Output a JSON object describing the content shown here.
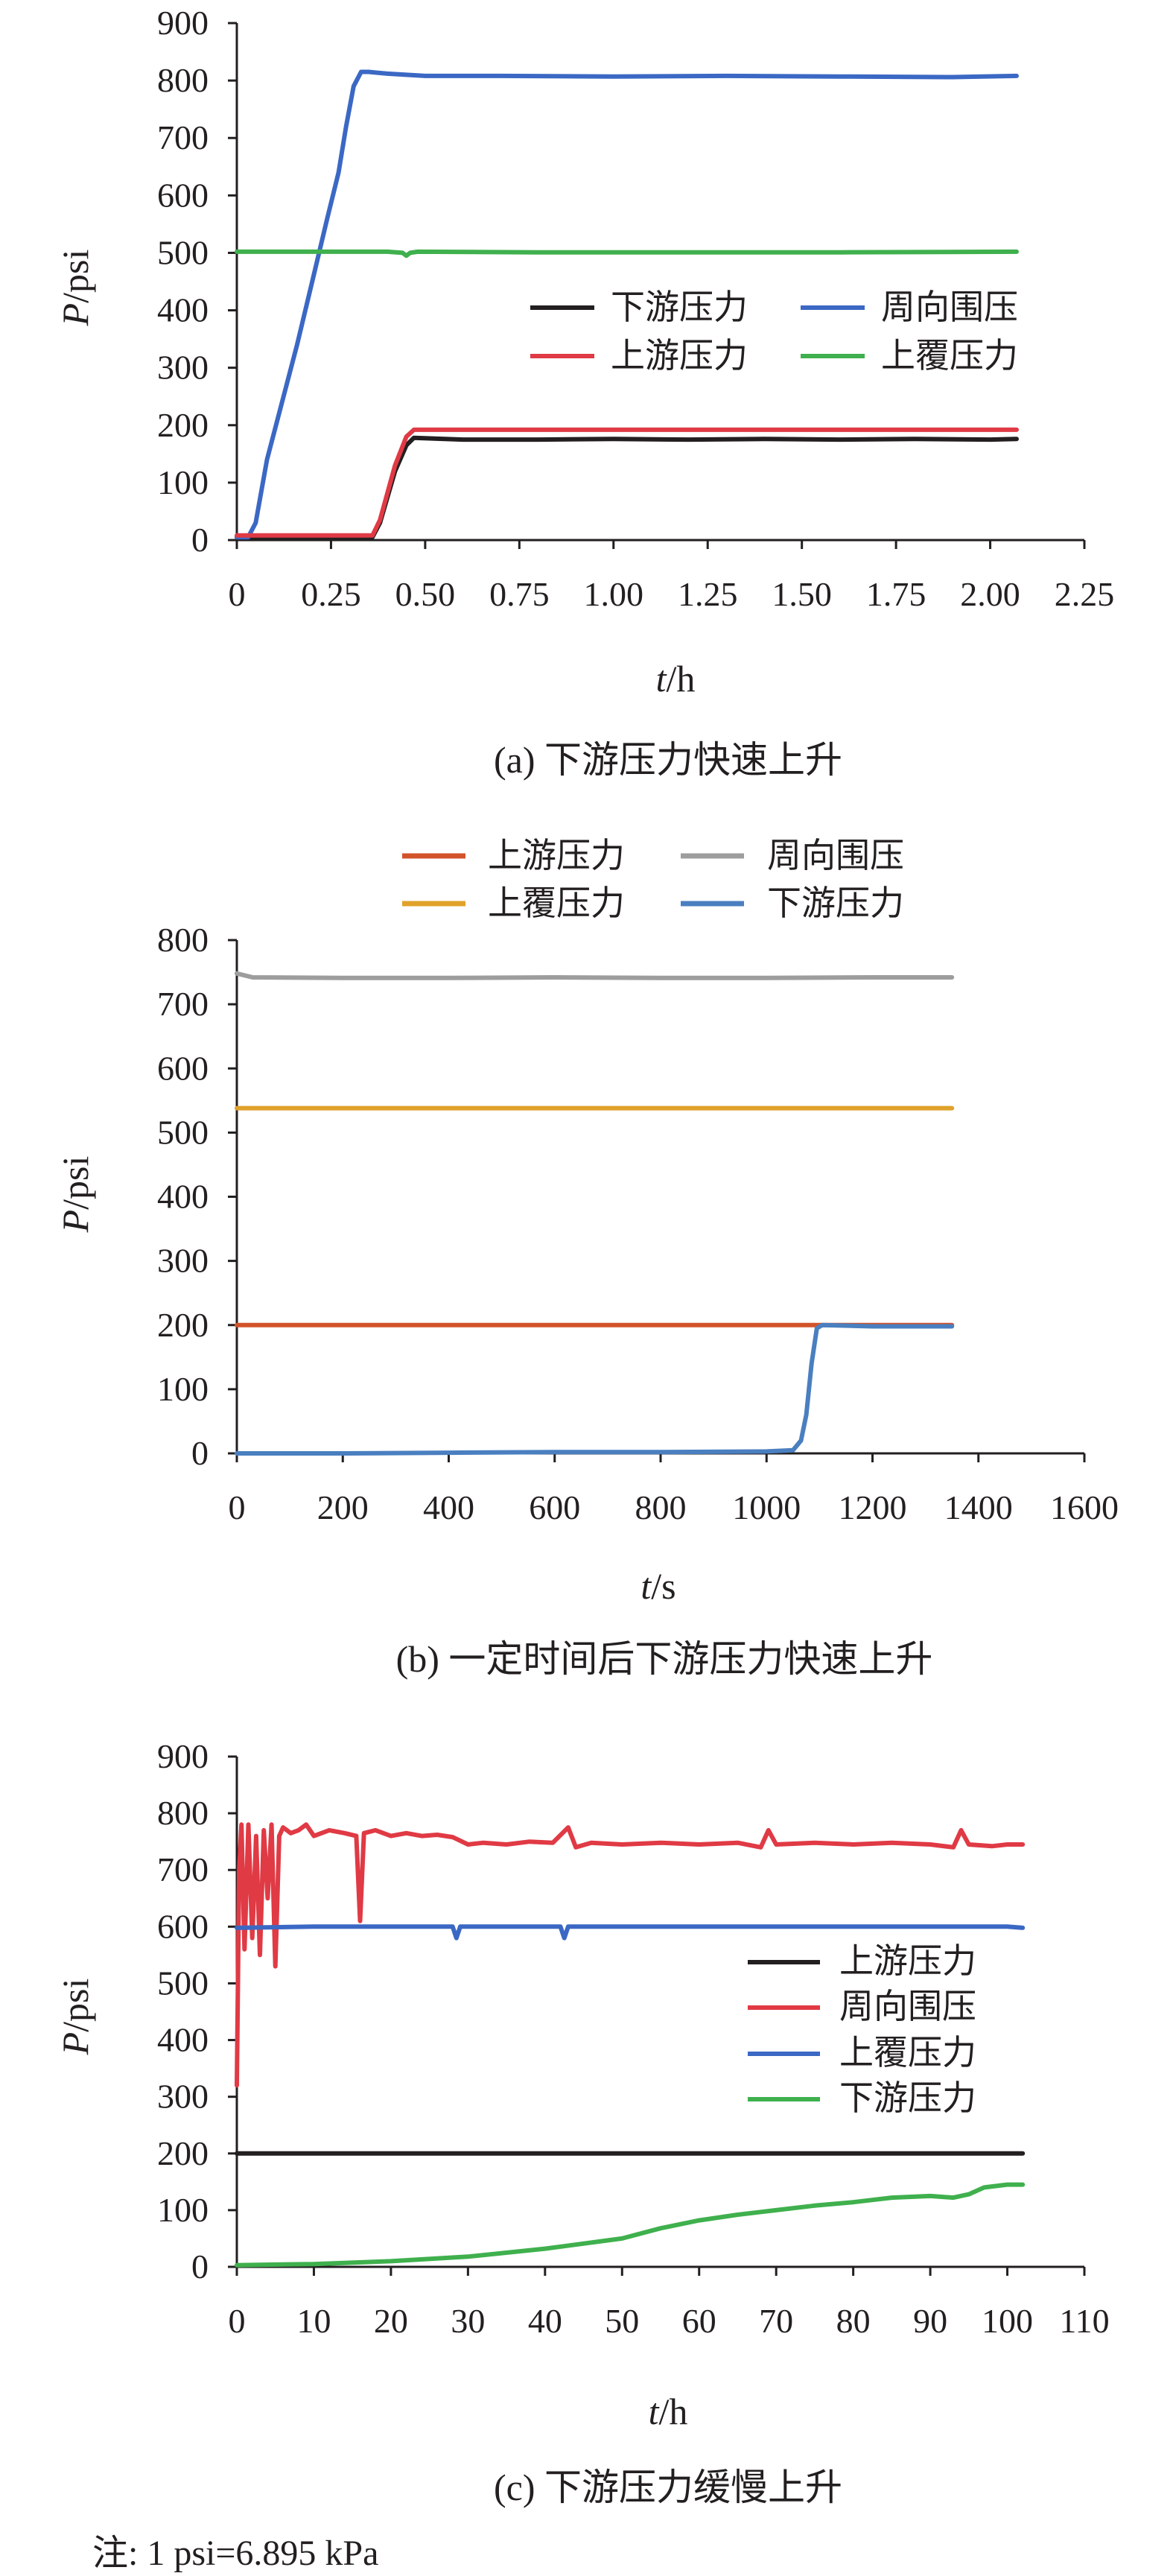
{
  "colors": {
    "axis": "#231f20",
    "a_downstream": "#231f20",
    "a_upstream": "#e03a45",
    "a_confining": "#3b68c4",
    "a_overburden": "#3fb04d",
    "b_upstream": "#d2532a",
    "b_confining": "#9d9d9d",
    "b_overburden": "#e0a22b",
    "b_downstream": "#4a7fc0",
    "c_upstream": "#231f20",
    "c_confining": "#e03a45",
    "c_overburden": "#3b68c4",
    "c_downstream": "#3fb04d"
  },
  "note": "注: 1 psi=6.895 kPa",
  "chart_data": [
    {
      "id": "a",
      "type": "line",
      "caption": "(a) 下游压力快速上升",
      "xlabel_var": "t",
      "xlabel_unit": "/h",
      "ylabel_var": "P",
      "ylabel_unit": "/psi",
      "xlim": [
        0,
        2.25
      ],
      "ylim": [
        0,
        900
      ],
      "xticks": [
        "0",
        "0.25",
        "0.50",
        "0.75",
        "1.00",
        "1.25",
        "1.50",
        "1.75",
        "2.00",
        "2.25"
      ],
      "yticks": [
        "0",
        "100",
        "200",
        "300",
        "400",
        "500",
        "600",
        "700",
        "800",
        "900"
      ],
      "legend_position": "center-right",
      "series": [
        {
          "name": "下游压力",
          "color_key": "a_downstream",
          "x": [
            0,
            0.1,
            0.2,
            0.3,
            0.36,
            0.38,
            0.42,
            0.45,
            0.47,
            0.6,
            0.8,
            1.0,
            1.2,
            1.4,
            1.6,
            1.8,
            2.0,
            2.07
          ],
          "y": [
            5,
            5,
            5,
            5,
            5,
            30,
            120,
            165,
            178,
            175,
            175,
            176,
            175,
            176,
            175,
            176,
            175,
            176
          ]
        },
        {
          "name": "周向围压",
          "color_key": "a_confining",
          "x": [
            0,
            0.03,
            0.05,
            0.08,
            0.12,
            0.16,
            0.2,
            0.24,
            0.27,
            0.29,
            0.31,
            0.33,
            0.35,
            0.4,
            0.5,
            0.7,
            1.0,
            1.3,
            1.6,
            1.9,
            2.07
          ],
          "y": [
            5,
            5,
            30,
            140,
            240,
            340,
            450,
            560,
            640,
            720,
            790,
            815,
            815,
            812,
            808,
            808,
            807,
            808,
            807,
            806,
            808
          ]
        },
        {
          "name": "上游压力",
          "color_key": "a_upstream",
          "x": [
            0,
            0.1,
            0.2,
            0.3,
            0.36,
            0.38,
            0.42,
            0.45,
            0.47,
            0.6,
            0.8,
            1.0,
            1.2,
            1.4,
            1.6,
            1.8,
            2.0,
            2.07
          ],
          "y": [
            8,
            8,
            8,
            8,
            8,
            35,
            130,
            180,
            192,
            192,
            192,
            192,
            192,
            192,
            192,
            192,
            192,
            192
          ]
        },
        {
          "name": "上覆压力",
          "color_key": "a_overburden",
          "x": [
            0,
            0.2,
            0.4,
            0.44,
            0.45,
            0.46,
            0.48,
            0.8,
            1.2,
            1.6,
            2.07
          ],
          "y": [
            502,
            502,
            502,
            500,
            495,
            500,
            502,
            501,
            501,
            501,
            502
          ]
        }
      ]
    },
    {
      "id": "b",
      "type": "line",
      "caption": "(b) 一定时间后下游压力快速上升",
      "xlabel_var": "t",
      "xlabel_unit": "/s",
      "ylabel_var": "P",
      "ylabel_unit": "/psi",
      "xlim": [
        0,
        1600
      ],
      "ylim": [
        0,
        800
      ],
      "xticks": [
        "0",
        "200",
        "400",
        "600",
        "800",
        "1000",
        "1200",
        "1400",
        "1600"
      ],
      "yticks": [
        "0",
        "100",
        "200",
        "300",
        "400",
        "500",
        "600",
        "700",
        "800"
      ],
      "legend_position": "top",
      "series": [
        {
          "name": "上游压力",
          "color_key": "b_upstream",
          "x": [
            0,
            300,
            600,
            900,
            1200,
            1350
          ],
          "y": [
            200,
            200,
            200,
            200,
            200,
            200
          ]
        },
        {
          "name": "周向围压",
          "color_key": "b_confining",
          "x": [
            0,
            30,
            200,
            400,
            600,
            800,
            1000,
            1200,
            1350
          ],
          "y": [
            748,
            742,
            741,
            741,
            742,
            741,
            741,
            742,
            742
          ]
        },
        {
          "name": "上覆压力",
          "color_key": "b_overburden",
          "x": [
            0,
            400,
            800,
            1200,
            1350
          ],
          "y": [
            538,
            538,
            538,
            538,
            538
          ]
        },
        {
          "name": "下游压力",
          "color_key": "b_downstream",
          "x": [
            0,
            200,
            400,
            600,
            800,
            1000,
            1050,
            1065,
            1075,
            1085,
            1095,
            1105,
            1200,
            1350
          ],
          "y": [
            0,
            0,
            1,
            2,
            2,
            3,
            5,
            20,
            60,
            140,
            195,
            200,
            198,
            198
          ]
        }
      ]
    },
    {
      "id": "c",
      "type": "line",
      "caption": "(c) 下游压力缓慢上升",
      "xlabel_var": "t",
      "xlabel_unit": "/h",
      "ylabel_var": "P",
      "ylabel_unit": "/psi",
      "xlim": [
        0,
        110
      ],
      "ylim": [
        0,
        900
      ],
      "xticks": [
        "0",
        "10",
        "20",
        "30",
        "40",
        "50",
        "60",
        "70",
        "80",
        "90",
        "100",
        "110"
      ],
      "yticks": [
        "0",
        "100",
        "200",
        "300",
        "400",
        "500",
        "600",
        "700",
        "800",
        "900"
      ],
      "legend_position": "right",
      "series": [
        {
          "name": "上游压力",
          "color_key": "c_upstream",
          "x": [
            0,
            10,
            20,
            30,
            40,
            50,
            60,
            70,
            80,
            90,
            100,
            102
          ],
          "y": [
            200,
            200,
            200,
            200,
            200,
            200,
            200,
            200,
            200,
            200,
            200,
            200
          ]
        },
        {
          "name": "周向围压",
          "color_key": "c_confining",
          "x": [
            0,
            0.3,
            0.6,
            1,
            1.5,
            2,
            2.5,
            3,
            3.5,
            4,
            4.5,
            5,
            5.5,
            6,
            7,
            8,
            9,
            10,
            12,
            14,
            15.5,
            16,
            16.5,
            18,
            20,
            22,
            24,
            26,
            28,
            30,
            32,
            35,
            38,
            41,
            43,
            44,
            46,
            50,
            55,
            60,
            65,
            68,
            69,
            70,
            75,
            80,
            85,
            90,
            93,
            94,
            95,
            98,
            100,
            102
          ],
          "y": [
            320,
            700,
            780,
            560,
            780,
            580,
            760,
            550,
            770,
            650,
            780,
            530,
            760,
            775,
            765,
            770,
            780,
            760,
            770,
            765,
            760,
            610,
            765,
            770,
            760,
            765,
            760,
            762,
            758,
            745,
            748,
            745,
            750,
            748,
            775,
            740,
            748,
            745,
            748,
            745,
            748,
            740,
            770,
            745,
            748,
            745,
            748,
            745,
            740,
            770,
            745,
            742,
            745,
            745
          ]
        },
        {
          "name": "上覆压力",
          "color_key": "c_overburden",
          "x": [
            0,
            10,
            20,
            28,
            28.5,
            29,
            40,
            42,
            42.5,
            43,
            60,
            80,
            100,
            102
          ],
          "y": [
            598,
            600,
            600,
            600,
            580,
            600,
            600,
            600,
            580,
            600,
            600,
            600,
            600,
            598
          ]
        },
        {
          "name": "下游压力",
          "color_key": "c_downstream",
          "x": [
            0,
            10,
            20,
            30,
            40,
            50,
            55,
            60,
            65,
            70,
            75,
            80,
            85,
            90,
            93,
            95,
            97,
            100,
            102
          ],
          "y": [
            3,
            5,
            10,
            18,
            32,
            50,
            68,
            82,
            92,
            100,
            108,
            114,
            122,
            125,
            122,
            128,
            140,
            145,
            145
          ]
        }
      ]
    }
  ]
}
